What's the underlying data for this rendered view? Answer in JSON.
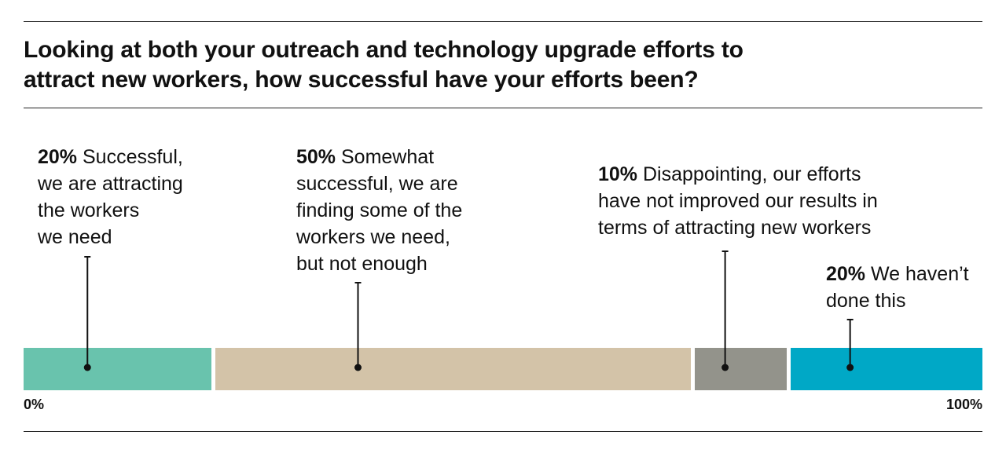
{
  "title_lines": [
    "Looking at both your outreach and technology upgrade efforts to",
    "attract new workers, how successful have your efforts been?"
  ],
  "chart_data": {
    "type": "bar",
    "orientation": "horizontal-stacked",
    "title": "Looking at both your outreach and technology upgrade efforts to attract new workers, how successful have your efforts been?",
    "xlim": [
      0,
      100
    ],
    "axis_start_label": "0%",
    "axis_end_label": "100%",
    "grid": false,
    "segments": [
      {
        "value": 20,
        "pct_label": "20%",
        "color": "#69c3ad",
        "text_lines": [
          "Successful,",
          "we are attracting",
          "the workers",
          "we need"
        ]
      },
      {
        "value": 50,
        "pct_label": "50%",
        "color": "#d3c3a8",
        "text_lines": [
          "Somewhat",
          "successful, we are",
          "finding some of the",
          "workers we need,",
          "but not enough"
        ]
      },
      {
        "value": 10,
        "pct_label": "10%",
        "color": "#93938b",
        "text_lines": [
          "Disappointing, our efforts",
          "have not improved our results in",
          "terms of attracting new workers"
        ]
      },
      {
        "value": 20,
        "pct_label": "20%",
        "color": "#00a8c6",
        "text_lines": [
          "We haven’t",
          "done this"
        ]
      }
    ]
  }
}
